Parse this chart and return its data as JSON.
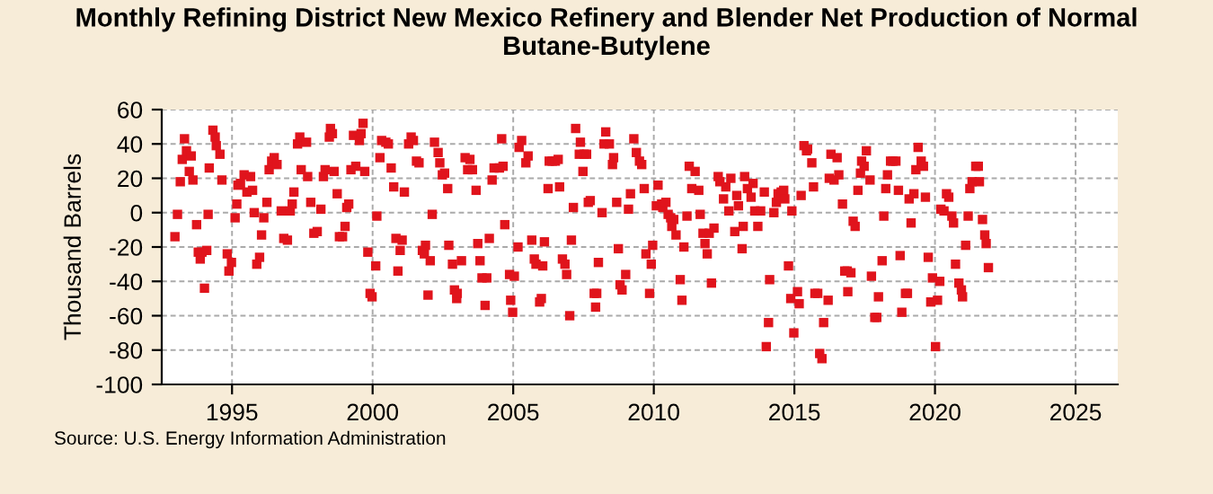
{
  "chart_data": {
    "type": "scatter",
    "title": "Monthly Refining District New Mexico Refinery and Blender Net Production of Normal Butane-Butylene",
    "ylabel": "Thousand Barrels",
    "annotations": [
      "Source: U.S. Energy Information Administration"
    ],
    "xlim": [
      1992.5,
      2026.5
    ],
    "xticks": [
      1995,
      2000,
      2005,
      2010,
      2015,
      2020,
      2025
    ],
    "ylim": [
      -100,
      60
    ],
    "yticks": [
      -100,
      -80,
      -60,
      -40,
      -20,
      0,
      20,
      40,
      60
    ],
    "grid": true,
    "marker": "square",
    "series": [
      {
        "color": "#e0141c",
        "x": [
          1992.97,
          1993.06,
          1993.16,
          1993.23,
          1993.31,
          1993.38,
          1993.48,
          1993.55,
          1993.61,
          1993.74,
          1993.8,
          1993.87,
          1993.93,
          1994.02,
          1994.1,
          1994.15,
          1994.19,
          1994.32,
          1994.4,
          1994.44,
          1994.57,
          1994.64,
          1994.83,
          1994.89,
          1994.98,
          1995.11,
          1995.17,
          1995.21,
          1995.3,
          1995.43,
          1995.53,
          1995.66,
          1995.73,
          1995.79,
          1995.88,
          1995.98,
          1996.05,
          1996.13,
          1996.24,
          1996.32,
          1996.41,
          1996.5,
          1996.6,
          1996.75,
          1996.84,
          1996.97,
          1997.07,
          1997.14,
          1997.2,
          1997.33,
          1997.41,
          1997.46,
          1997.65,
          1997.69,
          1997.8,
          1997.91,
          1998.03,
          1998.16,
          1998.25,
          1998.31,
          1998.46,
          1998.5,
          1998.57,
          1998.63,
          1998.74,
          1998.82,
          1998.93,
          1999.02,
          1999.08,
          1999.15,
          1999.23,
          1999.32,
          1999.4,
          1999.53,
          1999.59,
          1999.66,
          1999.72,
          1999.83,
          1999.91,
          1999.98,
          2000.11,
          2000.15,
          2000.26,
          2000.32,
          2000.47,
          2000.56,
          2000.66,
          2000.75,
          2000.83,
          2000.9,
          2000.98,
          2001.05,
          2001.13,
          2001.28,
          2001.37,
          2001.45,
          2001.56,
          2001.65,
          2001.77,
          2001.84,
          2001.88,
          2001.97,
          2002.05,
          2002.12,
          2002.2,
          2002.33,
          2002.39,
          2002.48,
          2002.56,
          2002.67,
          2002.71,
          2002.84,
          2002.91,
          2002.99,
          2003.01,
          2003.16,
          2003.29,
          2003.38,
          2003.46,
          2003.55,
          2003.68,
          2003.74,
          2003.82,
          2003.89,
          2004.0,
          2004.06,
          2004.15,
          2004.25,
          2004.32,
          2004.51,
          2004.59,
          2004.64,
          2004.7,
          2004.87,
          2004.91,
          2004.98,
          2005.04,
          2005.17,
          2005.21,
          2005.3,
          2005.45,
          2005.53,
          2005.66,
          2005.75,
          2005.81,
          2005.94,
          2006.0,
          2006.05,
          2006.11,
          2006.24,
          2006.28,
          2006.39,
          2006.5,
          2006.6,
          2006.65,
          2006.75,
          2006.84,
          2006.9,
          2007.01,
          2007.07,
          2007.14,
          2007.22,
          2007.35,
          2007.39,
          2007.48,
          2007.52,
          2007.61,
          2007.67,
          2007.74,
          2007.88,
          2007.93,
          2007.97,
          2008.03,
          2008.16,
          2008.23,
          2008.29,
          2008.42,
          2008.53,
          2008.57,
          2008.68,
          2008.74,
          2008.8,
          2008.87,
          2009.0,
          2009.1,
          2009.17,
          2009.29,
          2009.38,
          2009.49,
          2009.57,
          2009.66,
          2009.72,
          2009.85,
          2009.91,
          2009.96,
          2010.09,
          2010.15,
          2010.28,
          2010.32,
          2010.43,
          2010.51,
          2010.6,
          2010.64,
          2010.71,
          2010.79,
          2010.94,
          2011.0,
          2011.07,
          2011.18,
          2011.26,
          2011.35,
          2011.47,
          2011.6,
          2011.65,
          2011.75,
          2011.82,
          2011.9,
          2011.97,
          2012.05,
          2012.14,
          2012.29,
          2012.35,
          2012.48,
          2012.56,
          2012.67,
          2012.74,
          2012.88,
          2012.95,
          2013.01,
          2013.14,
          2013.18,
          2013.23,
          2013.33,
          2013.46,
          2013.53,
          2013.59,
          2013.7,
          2013.8,
          2013.93,
          2014.0,
          2014.08,
          2014.12,
          2014.27,
          2014.36,
          2014.42,
          2014.53,
          2014.62,
          2014.66,
          2014.79,
          2014.87,
          2014.91,
          2014.98,
          2015.11,
          2015.17,
          2015.24,
          2015.34,
          2015.43,
          2015.47,
          2015.62,
          2015.68,
          2015.73,
          2015.83,
          2015.9,
          2015.98,
          2016.04,
          2016.2,
          2016.24,
          2016.3,
          2016.41,
          2016.52,
          2016.58,
          2016.71,
          2016.79,
          2016.88,
          2016.9,
          2017.01,
          2017.09,
          2017.16,
          2017.26,
          2017.35,
          2017.39,
          2017.48,
          2017.56,
          2017.69,
          2017.74,
          2017.86,
          2017.93,
          2017.99,
          2018.12,
          2018.18,
          2018.25,
          2018.31,
          2018.42,
          2018.5,
          2018.61,
          2018.7,
          2018.76,
          2018.82,
          2018.95,
          2019.02,
          2019.08,
          2019.15,
          2019.25,
          2019.32,
          2019.4,
          2019.51,
          2019.59,
          2019.66,
          2019.76,
          2019.85,
          2019.91,
          2020.02,
          2020.09,
          2020.17,
          2020.21,
          2020.32,
          2020.41,
          2020.49,
          2020.6,
          2020.66,
          2020.73,
          2020.85,
          2020.94,
          2020.98,
          2021.09,
          2021.18,
          2021.24,
          2021.32,
          2021.45,
          2021.54,
          2021.58,
          2021.69,
          2021.77,
          2021.82,
          2021.9
        ],
        "values": [
          -14,
          -1,
          18,
          31,
          43,
          36,
          24,
          33,
          19,
          -7,
          -23,
          -27,
          -23,
          -44,
          -22,
          -1,
          26,
          48,
          44,
          39,
          34,
          19,
          -24,
          -34,
          -29,
          -3,
          5,
          16,
          17,
          22,
          12,
          21,
          13,
          0,
          -30,
          -26,
          -13,
          -3,
          6,
          25,
          30,
          32,
          28,
          1,
          -15,
          -16,
          1,
          5,
          12,
          40,
          44,
          25,
          41,
          21,
          6,
          -12,
          -11,
          2,
          21,
          25,
          44,
          49,
          46,
          24,
          11,
          -14,
          -14,
          -8,
          3,
          5,
          25,
          45,
          27,
          42,
          46,
          52,
          24,
          -23,
          -47,
          -49,
          -31,
          -2,
          32,
          42,
          41,
          40,
          26,
          15,
          -15,
          -34,
          -22,
          -16,
          12,
          40,
          44,
          42,
          30,
          29,
          -22,
          -24,
          -19,
          -48,
          -28,
          -1,
          41,
          35,
          29,
          22,
          23,
          14,
          -19,
          -30,
          -45,
          -50,
          -47,
          -28,
          32,
          25,
          31,
          25,
          13,
          -18,
          -28,
          -38,
          -54,
          -38,
          -15,
          19,
          26,
          26,
          43,
          27,
          -7,
          -36,
          -51,
          -58,
          -37,
          -20,
          38,
          42,
          29,
          33,
          -16,
          -27,
          -30,
          -52,
          -50,
          -31,
          -17,
          14,
          30,
          30,
          30,
          31,
          15,
          -27,
          -30,
          -36,
          -60,
          -16,
          3,
          49,
          34,
          41,
          24,
          34,
          34,
          6,
          7,
          -47,
          -55,
          -47,
          -29,
          0,
          40,
          47,
          40,
          28,
          32,
          6,
          -21,
          -42,
          -45,
          -36,
          2,
          11,
          43,
          35,
          30,
          28,
          14,
          -24,
          -47,
          -30,
          -19,
          4,
          16,
          5,
          3,
          6,
          -1,
          -3,
          -8,
          -4,
          -13,
          -39,
          -51,
          -20,
          -2,
          27,
          14,
          24,
          13,
          -1,
          -12,
          -18,
          -24,
          -12,
          -41,
          -9,
          21,
          18,
          8,
          15,
          1,
          20,
          -11,
          10,
          4,
          -21,
          -8,
          21,
          14,
          9,
          17,
          1,
          -8,
          1,
          12,
          -78,
          -64,
          -39,
          0,
          6,
          11,
          12,
          13,
          8,
          -31,
          -50,
          1,
          -70,
          -46,
          -53,
          10,
          39,
          36,
          37,
          29,
          15,
          -47,
          -47,
          -82,
          -85,
          -64,
          -51,
          20,
          34,
          19,
          32,
          22,
          5,
          -34,
          -34,
          -46,
          -35,
          -5,
          -8,
          13,
          23,
          30,
          27,
          36,
          19,
          -37,
          -61,
          -61,
          -49,
          -28,
          -2,
          14,
          22,
          30,
          30,
          30,
          13,
          -25,
          -58,
          -47,
          -47,
          8,
          -6,
          11,
          25,
          38,
          30,
          27,
          9,
          -26,
          -52,
          -38,
          -78,
          -51,
          -40,
          2,
          1,
          11,
          9,
          -2,
          -6,
          -30,
          -41,
          -45,
          -49,
          -19,
          -2,
          14,
          18,
          27,
          27,
          18,
          -4,
          -13,
          -18,
          -32
        ]
      }
    ]
  }
}
